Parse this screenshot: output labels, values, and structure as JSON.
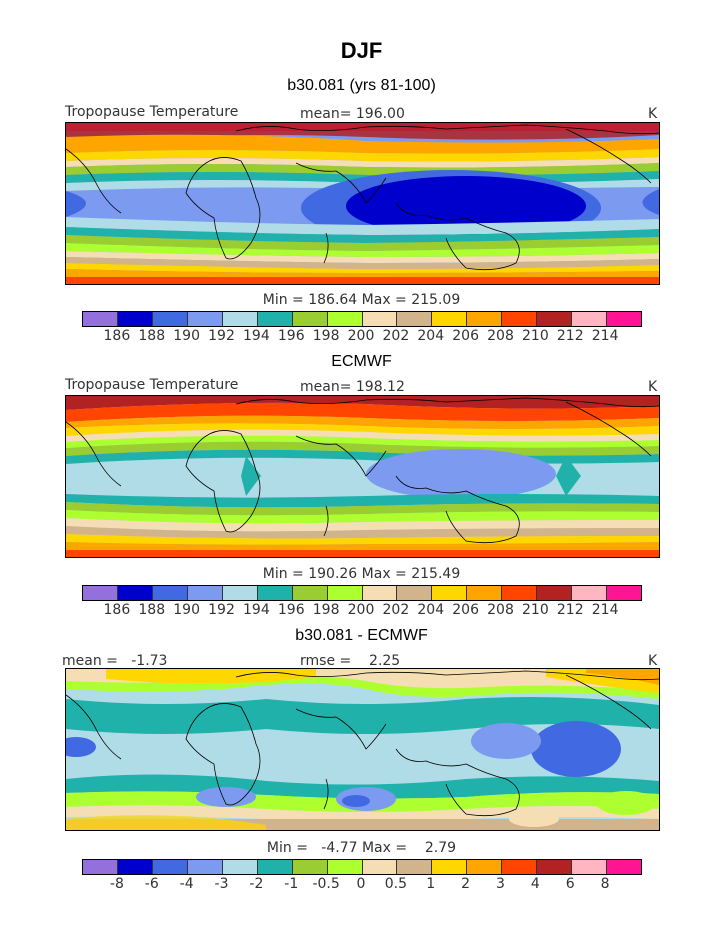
{
  "title": "DJF",
  "panels": [
    {
      "subtitle": "b30.081 (yrs 81-100)",
      "left_label": "Tropopause Temperature",
      "center_label": "mean= 196.00",
      "units": "K",
      "stats": "Min = 186.64 Max = 215.09"
    },
    {
      "subtitle": "ECMWF",
      "left_label": "Tropopause Temperature",
      "center_label": "mean= 198.12",
      "units": "K",
      "stats": "Min = 190.26 Max = 215.49"
    },
    {
      "subtitle": "b30.081 - ECMWF",
      "left_label": "mean =   -1.73",
      "center_label": "rmse =    2.25",
      "units": "K",
      "stats": "Min =   -4.77 Max =    2.79"
    }
  ],
  "colorbar_colors": [
    "#9370db",
    "#0000cd",
    "#4169e1",
    "#7b9af0",
    "#b0dce8",
    "#20b2aa",
    "#9acd32",
    "#adff2f",
    "#f5deb3",
    "#d2b48c",
    "#ffd700",
    "#ffa500",
    "#ff4500",
    "#b22222",
    "#ffb6c1",
    "#ff1493"
  ],
  "abs_ticks": [
    "186",
    "188",
    "190",
    "192",
    "194",
    "196",
    "198",
    "200",
    "202",
    "204",
    "206",
    "208",
    "210",
    "212",
    "214"
  ],
  "diff_ticks": [
    "-8",
    "-6",
    "-4",
    "-3",
    "-2",
    "-1",
    "-0.5",
    "0",
    "0.5",
    "1",
    "2",
    "3",
    "4",
    "6",
    "8"
  ]
}
